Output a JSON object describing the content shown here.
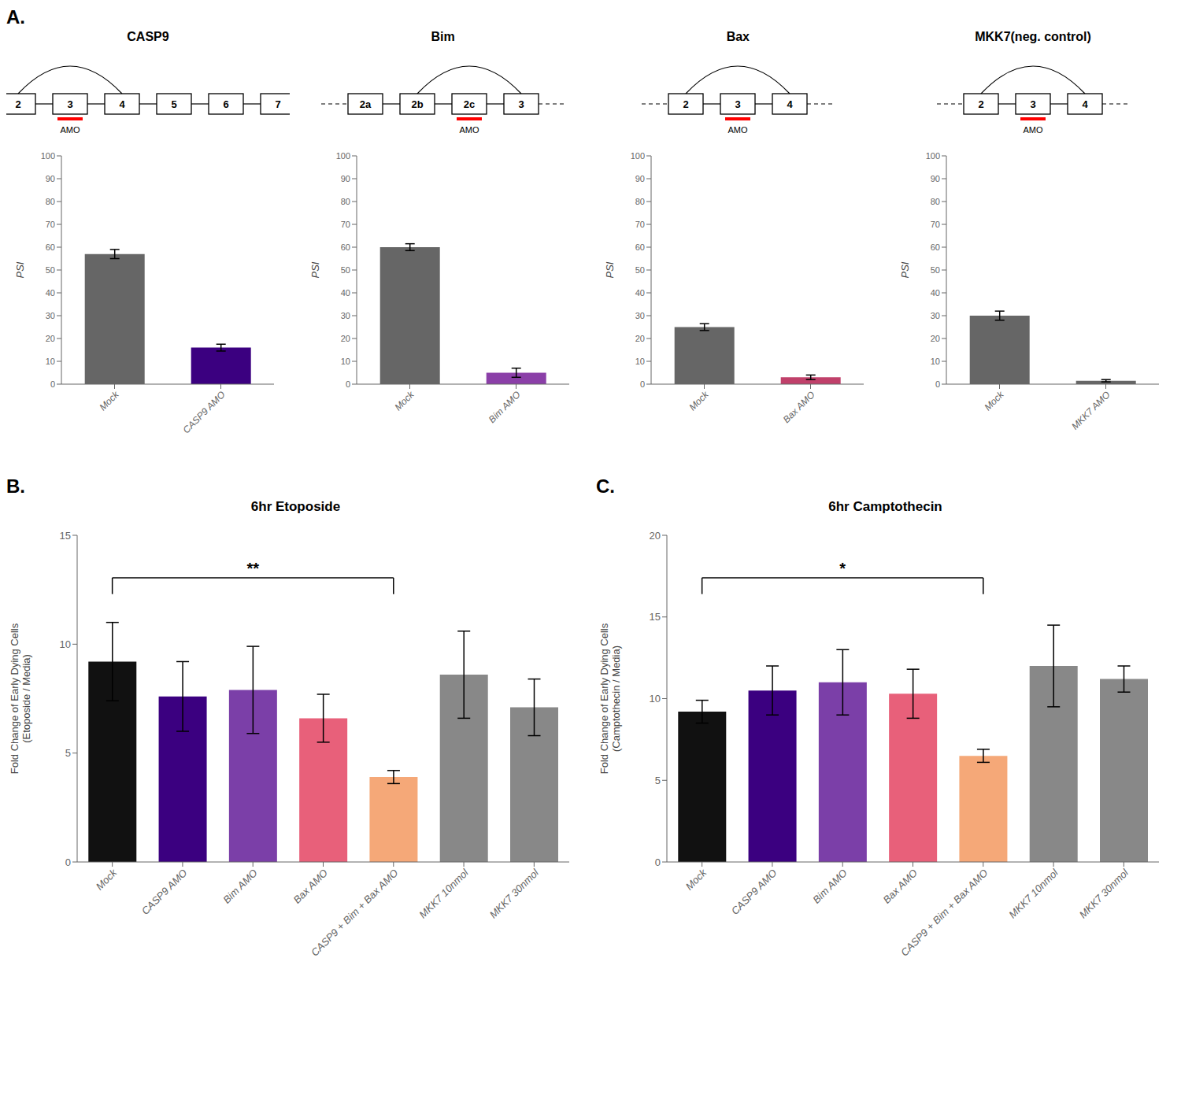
{
  "chart_data": [
    {
      "type": "bar",
      "panel_label": "A.",
      "title": "CASP9",
      "exons": [
        "2",
        "3",
        "4",
        "5",
        "6",
        "7"
      ],
      "annotations": [
        {
          "text": "AMO",
          "exon": "3"
        }
      ],
      "categories": [
        "Mock",
        "CASP9 AMO"
      ],
      "values": [
        57,
        16
      ],
      "errors": [
        2,
        1.5
      ],
      "colors": [
        "#666666",
        "#3B0080"
      ],
      "ylabel": "PSI",
      "ylim": [
        0,
        100
      ],
      "yticks": [
        0,
        10,
        20,
        30,
        40,
        50,
        60,
        70,
        80,
        90,
        100
      ],
      "grid": false
    },
    {
      "type": "bar",
      "title": "Bim",
      "exons": [
        "2a",
        "2b",
        "2c",
        "3"
      ],
      "annotations": [
        {
          "text": "AMO",
          "exon": "2c"
        }
      ],
      "categories": [
        "Mock",
        "Bim AMO"
      ],
      "values": [
        60,
        5
      ],
      "errors": [
        1.5,
        2
      ],
      "colors": [
        "#666666",
        "#8B3FA8"
      ],
      "ylabel": "PSI",
      "ylim": [
        0,
        100
      ],
      "yticks": [
        0,
        10,
        20,
        30,
        40,
        50,
        60,
        70,
        80,
        90,
        100
      ],
      "grid": false
    },
    {
      "type": "bar",
      "title": "Bax",
      "exons": [
        "2",
        "3",
        "4"
      ],
      "annotations": [
        {
          "text": "AMO",
          "exon": "3"
        }
      ],
      "categories": [
        "Mock",
        "Bax AMO"
      ],
      "values": [
        25,
        3
      ],
      "errors": [
        1.5,
        1
      ],
      "colors": [
        "#666666",
        "#C0406A"
      ],
      "ylabel": "PSI",
      "ylim": [
        0,
        100
      ],
      "yticks": [
        0,
        10,
        20,
        30,
        40,
        50,
        60,
        70,
        80,
        90,
        100
      ],
      "grid": false
    },
    {
      "type": "bar",
      "title": "MKK7(neg. control)",
      "exons": [
        "2",
        "3",
        "4"
      ],
      "annotations": [
        {
          "text": "AMO",
          "exon": "3"
        }
      ],
      "categories": [
        "Mock",
        "MKK7 AMO"
      ],
      "values": [
        30,
        1.5
      ],
      "errors": [
        2,
        0.5
      ],
      "colors": [
        "#666666",
        "#666666"
      ],
      "ylabel": "PSI",
      "ylim": [
        0,
        100
      ],
      "yticks": [
        0,
        10,
        20,
        30,
        40,
        50,
        60,
        70,
        80,
        90,
        100
      ],
      "grid": false
    },
    {
      "type": "bar",
      "panel_label": "B.",
      "title": "6hr Etoposide",
      "categories": [
        "Mock",
        "CASP9 AMO",
        "Bim AMO",
        "Bax AMO",
        "CASP9 + Bim + Bax AMO",
        "MKK7 10nmol",
        "MKK7 30nmol"
      ],
      "values": [
        9.2,
        7.6,
        7.9,
        6.6,
        3.9,
        8.6,
        7.1
      ],
      "errors": [
        1.8,
        1.6,
        2.0,
        1.1,
        0.3,
        2.0,
        1.3
      ],
      "colors": [
        "#111111",
        "#3B0080",
        "#7B3FA8",
        "#E8607A",
        "#F5A878",
        "#888888",
        "#888888"
      ],
      "ylabel": "Fold Change of Early Dying Cells\n(Etoposide / Media)",
      "ylim": [
        0,
        15
      ],
      "yticks": [
        0,
        5,
        10,
        15
      ],
      "annotations": [
        {
          "text": "**",
          "from": "Mock",
          "to": "CASP9 + Bim + Bax AMO"
        }
      ],
      "grid": false
    },
    {
      "type": "bar",
      "panel_label": "C.",
      "title": "6hr Camptothecin",
      "categories": [
        "Mock",
        "CASP9 AMO",
        "Bim AMO",
        "Bax AMO",
        "CASP9 + Bim + Bax AMO",
        "MKK7 10nmol",
        "MKK7 30nmol"
      ],
      "values": [
        9.2,
        10.5,
        11.0,
        10.3,
        6.5,
        12.0,
        11.2
      ],
      "errors": [
        0.7,
        1.5,
        2.0,
        1.5,
        0.4,
        2.5,
        0.8
      ],
      "colors": [
        "#111111",
        "#3B0080",
        "#7B3FA8",
        "#E8607A",
        "#F5A878",
        "#888888",
        "#888888"
      ],
      "ylabel": "Fold Change of Early Dying Cells\n(Camptothecin / Media)",
      "ylim": [
        0,
        20
      ],
      "yticks": [
        0,
        5,
        10,
        15,
        20
      ],
      "annotations": [
        {
          "text": "*",
          "from": "Mock",
          "to": "CASP9 + Bim + Bax AMO"
        }
      ],
      "grid": false
    }
  ]
}
